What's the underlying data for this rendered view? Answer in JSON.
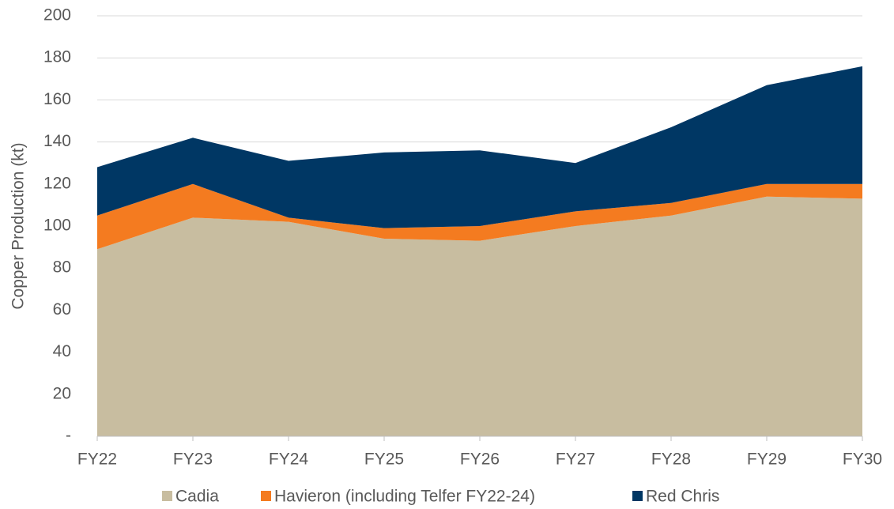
{
  "chart_data": {
    "type": "stacked_area",
    "y_label": "Copper Production (kt)",
    "categories": [
      "FY22",
      "FY23",
      "FY24",
      "FY25",
      "FY26",
      "FY27",
      "FY28",
      "FY29",
      "FY30"
    ],
    "series": [
      {
        "name": "Cadia",
        "color": "#c8bda0",
        "values": [
          89,
          104,
          102,
          94,
          93,
          100,
          105,
          114,
          113
        ]
      },
      {
        "name": "Havieron (including Telfer FY22-24)",
        "color": "#f47b20",
        "values": [
          16,
          16,
          2,
          5,
          7,
          7,
          6,
          6,
          7
        ]
      },
      {
        "name": "Red Chris",
        "color": "#003764",
        "values": [
          23,
          22,
          27,
          36,
          36,
          23,
          36,
          47,
          56
        ]
      }
    ],
    "ylim": [
      0,
      200
    ],
    "yticks": [
      {
        "value": 0,
        "label": "-"
      },
      20,
      40,
      60,
      80,
      100,
      120,
      140,
      160,
      180,
      200
    ],
    "grid": true
  }
}
